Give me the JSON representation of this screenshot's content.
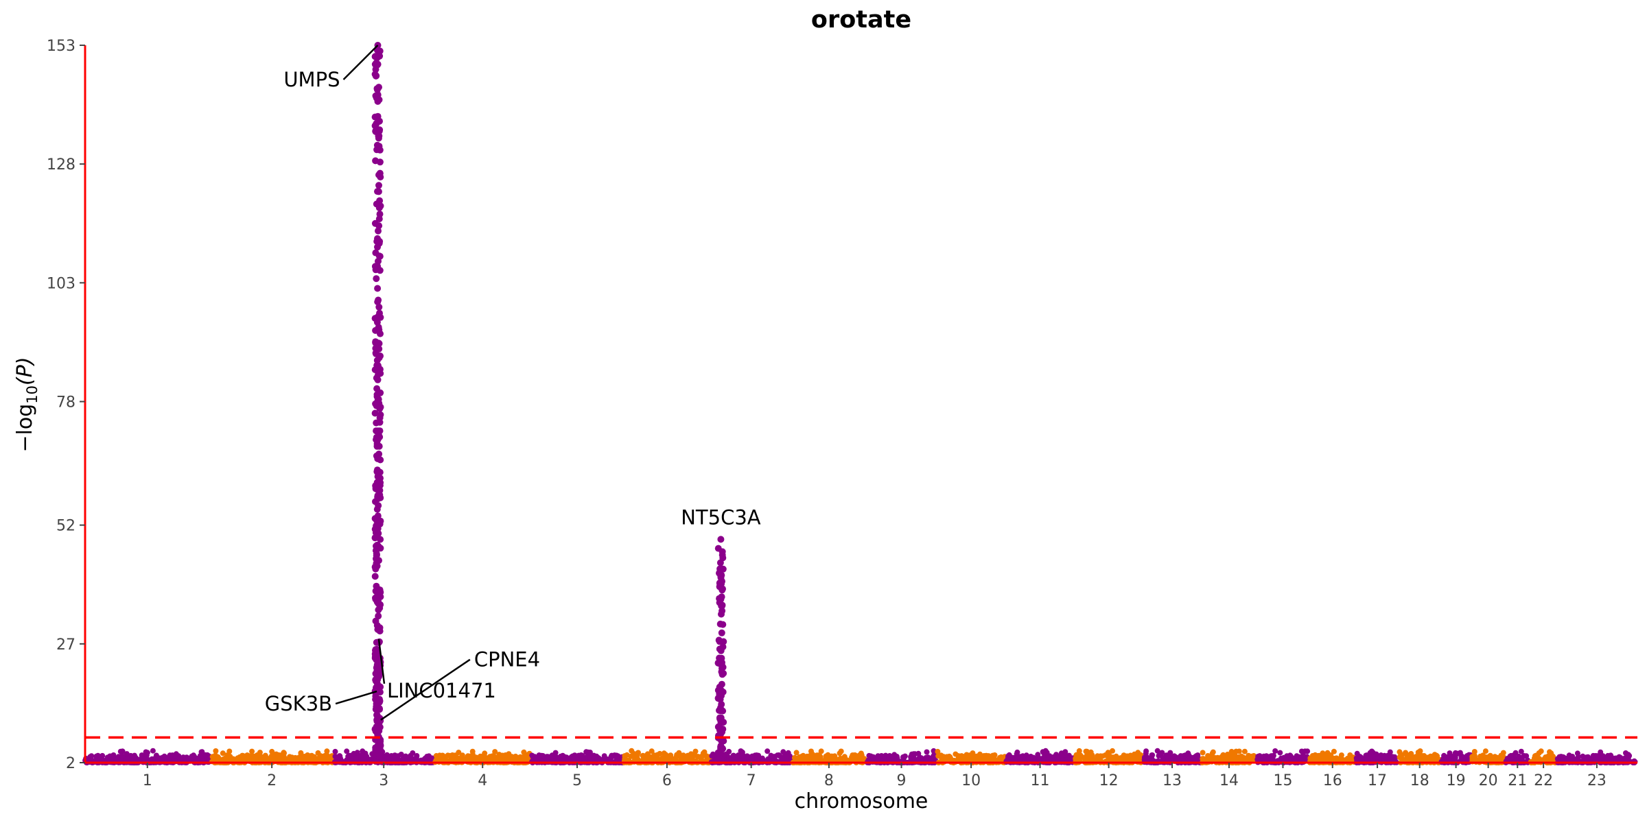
{
  "chart_data": {
    "type": "scatter",
    "title": "orotate",
    "xlabel": "chromosome",
    "ylabel": "−log",
    "ylabel_sub": "10",
    "ylabel_var": "(P)",
    "ylim": [
      2,
      153
    ],
    "yticks": [
      2,
      27,
      52,
      78,
      103,
      128,
      153
    ],
    "significance_threshold": 7.3,
    "colors": {
      "odd": "#8B008B",
      "even": "#F07800",
      "axis": "#FF0000",
      "threshold": "#FF0000"
    },
    "chromosomes": [
      {
        "label": "1",
        "size": 248
      },
      {
        "label": "2",
        "size": 242
      },
      {
        "label": "3",
        "size": 198
      },
      {
        "label": "4",
        "size": 190
      },
      {
        "label": "5",
        "size": 181
      },
      {
        "label": "6",
        "size": 171
      },
      {
        "label": "7",
        "size": 159
      },
      {
        "label": "8",
        "size": 145
      },
      {
        "label": "9",
        "size": 138
      },
      {
        "label": "10",
        "size": 134
      },
      {
        "label": "11",
        "size": 135
      },
      {
        "label": "12",
        "size": 133
      },
      {
        "label": "13",
        "size": 114
      },
      {
        "label": "14",
        "size": 107
      },
      {
        "label": "15",
        "size": 102
      },
      {
        "label": "16",
        "size": 90
      },
      {
        "label": "17",
        "size": 83
      },
      {
        "label": "18",
        "size": 80
      },
      {
        "label": "19",
        "size": 59
      },
      {
        "label": "20",
        "size": 64
      },
      {
        "label": "21",
        "size": 47
      },
      {
        "label": "22",
        "size": 51
      },
      {
        "label": "23",
        "size": 156
      }
    ],
    "peaks": [
      {
        "chrom": "3",
        "pos_frac": 0.44,
        "max": 153
      },
      {
        "chrom": "7",
        "pos_frac": 0.12,
        "max": 49
      }
    ],
    "annotations": [
      {
        "gene": "UMPS",
        "chrom": "3",
        "pos_frac": 0.44,
        "y": 153
      },
      {
        "gene": "GSK3B",
        "chrom": "3",
        "pos_frac": 0.43,
        "y": 17
      },
      {
        "gene": "LINC01471",
        "chrom": "3",
        "pos_frac": 0.45,
        "y": 28
      },
      {
        "gene": "CPNE4",
        "chrom": "3",
        "pos_frac": 0.47,
        "y": 11
      },
      {
        "gene": "NT5C3A",
        "chrom": "7",
        "pos_frac": 0.12,
        "y": 49
      }
    ]
  }
}
